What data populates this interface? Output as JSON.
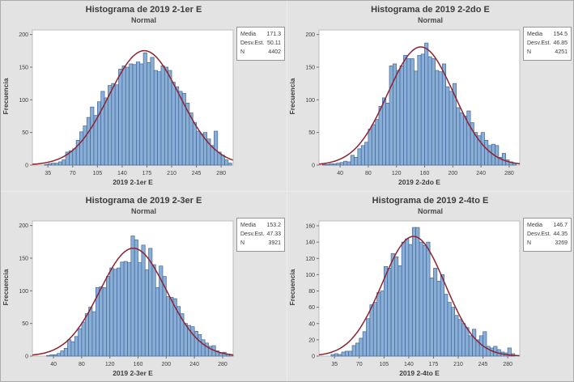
{
  "colors": {
    "bar_fill": "#8AAFD7",
    "bar_stroke": "#40659A",
    "curve": "#8D2332",
    "frame": "#BDBDBD",
    "tick": "#707070",
    "panel_bg": "#E3E3E3",
    "plot_bg": "#FFFFFF",
    "text": "#3C3C3C"
  },
  "chart_data": [
    {
      "type": "bar",
      "subtype": "histogram-with-normal-fit",
      "title": "Histograma de 2019 2-1er E",
      "subtitle": "Normal",
      "xlabel": "2019 2-1er E",
      "ylabel": "Frecuencia",
      "stats_labels": [
        "Media",
        "Desv.Est.",
        "N"
      ],
      "stats_values": [
        "171.3",
        "50.11",
        "4402"
      ],
      "mean": 171.3,
      "sd": 50.11,
      "n": 4402,
      "bin_start": 30,
      "bin_width": 5,
      "values": [
        1,
        2,
        3,
        3,
        5,
        8,
        20,
        22,
        25,
        38,
        51,
        60,
        73,
        89,
        76,
        97,
        113,
        103,
        122,
        125,
        123,
        147,
        152,
        150,
        155,
        154,
        158,
        155,
        172,
        157,
        165,
        145,
        143,
        152,
        150,
        145,
        127,
        120,
        113,
        110,
        95,
        80,
        65,
        52,
        48,
        50,
        40,
        30,
        52,
        20,
        15,
        8,
        3
      ],
      "x_ticks": [
        35,
        70,
        105,
        140,
        175,
        210,
        245,
        280
      ],
      "y_ticks": [
        0,
        50,
        100,
        150,
        200
      ],
      "xlim": [
        13,
        297
      ],
      "ylim": [
        0,
        207
      ]
    },
    {
      "type": "bar",
      "subtype": "histogram-with-normal-fit",
      "title": "Histograma de 2019 2-2do E",
      "subtitle": "Normal",
      "xlabel": "2019 2-2do E",
      "ylabel": "Frecuencia",
      "stats_labels": [
        "Media",
        "Desv.Est.",
        "N"
      ],
      "stats_values": [
        "154.5",
        "46.85",
        "4251"
      ],
      "mean": 154.5,
      "sd": 46.85,
      "n": 4251,
      "bin_start": 15,
      "bin_width": 5,
      "values": [
        1,
        1,
        2,
        2,
        3,
        4,
        6,
        5,
        15,
        12,
        25,
        30,
        35,
        55,
        62,
        70,
        90,
        103,
        95,
        152,
        155,
        145,
        152,
        168,
        163,
        163,
        144,
        168,
        170,
        187,
        166,
        163,
        145,
        143,
        155,
        120,
        113,
        125,
        88,
        80,
        75,
        83,
        65,
        50,
        45,
        50,
        38,
        30,
        32,
        30,
        12,
        18,
        8,
        5,
        3
      ],
      "x_ticks": [
        40,
        80,
        120,
        160,
        200,
        240,
        280
      ],
      "y_ticks": [
        0,
        50,
        100,
        150,
        200
      ],
      "xlim": [
        10,
        295
      ],
      "ylim": [
        0,
        207
      ]
    },
    {
      "type": "bar",
      "subtype": "histogram-with-normal-fit",
      "title": "Histograma de 2019 2-3er E",
      "subtitle": "Normal",
      "xlabel": "2019 2-3er E",
      "ylabel": "Frecuencia",
      "stats_labels": [
        "Media",
        "Desv.Est.",
        "N"
      ],
      "stats_values": [
        "153.2",
        "47.33",
        "3921"
      ],
      "mean": 153.2,
      "sd": 47.33,
      "n": 3921,
      "bin_start": 30,
      "bin_width": 5,
      "values": [
        1,
        2,
        2,
        4,
        8,
        12,
        25,
        22,
        30,
        42,
        52,
        65,
        75,
        68,
        105,
        106,
        105,
        122,
        135,
        133,
        135,
        144,
        145,
        143,
        184,
        178,
        143,
        170,
        132,
        165,
        140,
        105,
        138,
        122,
        91,
        90,
        88,
        76,
        65,
        50,
        47,
        45,
        38,
        33,
        25,
        20,
        15,
        16,
        8,
        5,
        6,
        3,
        2
      ],
      "x_ticks": [
        40,
        80,
        120,
        160,
        200,
        240,
        280
      ],
      "y_ticks": [
        0,
        50,
        100,
        150,
        200
      ],
      "xlim": [
        10,
        295
      ],
      "ylim": [
        0,
        207
      ]
    },
    {
      "type": "bar",
      "subtype": "histogram-with-normal-fit",
      "title": "Histograma de 2019 2-4to E",
      "subtitle": "Normal",
      "xlabel": "2019 2-4to E",
      "ylabel": "Frecuencia",
      "stats_labels": [
        "Media",
        "Desv.Est.",
        "N"
      ],
      "stats_values": [
        "146.7",
        "44.35",
        "3269"
      ],
      "mean": 146.7,
      "sd": 44.35,
      "n": 3269,
      "bin_start": 30,
      "bin_width": 5,
      "values": [
        2,
        3,
        2,
        5,
        6,
        6,
        13,
        16,
        22,
        30,
        46,
        63,
        66,
        78,
        80,
        110,
        108,
        126,
        122,
        111,
        140,
        144,
        137,
        158,
        158,
        140,
        136,
        140,
        96,
        108,
        92,
        100,
        76,
        66,
        60,
        50,
        45,
        40,
        35,
        25,
        33,
        20,
        25,
        30,
        12,
        10,
        12,
        8,
        5,
        4,
        10,
        3
      ],
      "x_ticks": [
        35,
        70,
        105,
        140,
        175,
        210,
        245,
        280
      ],
      "y_ticks": [
        0,
        20,
        40,
        60,
        80,
        100,
        120,
        140,
        160
      ],
      "xlim": [
        13,
        297
      ],
      "ylim": [
        0,
        166
      ]
    }
  ]
}
